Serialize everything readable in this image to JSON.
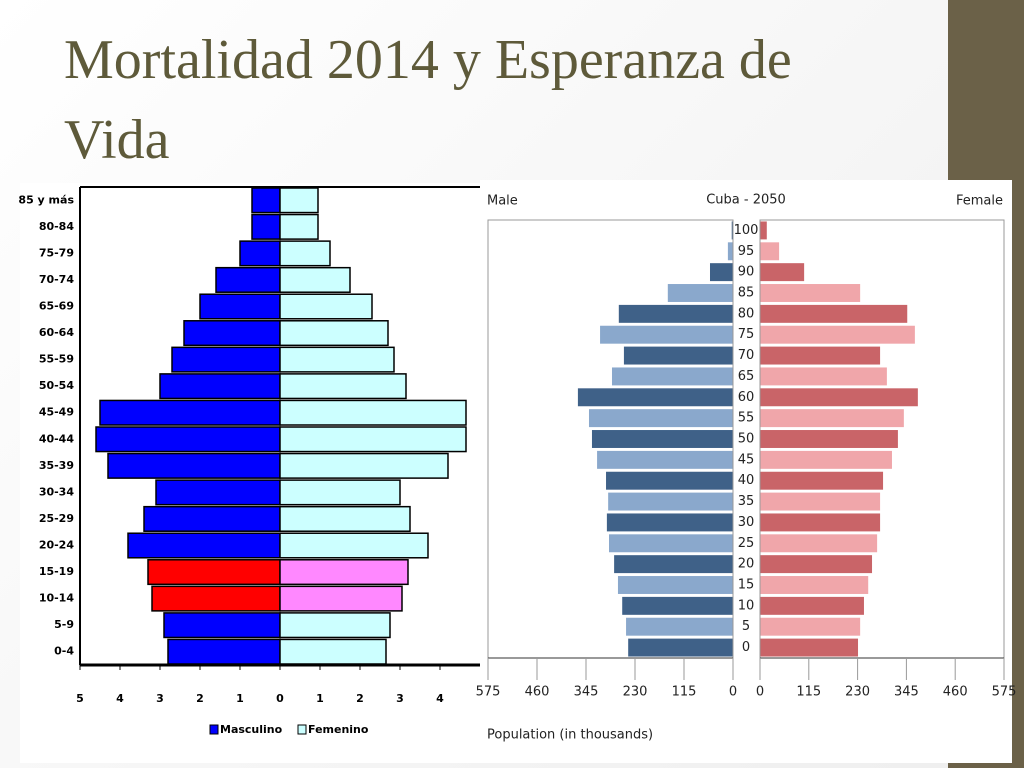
{
  "title": "Mortalidad 2014 y Esperanza de Vida",
  "chart_data": [
    {
      "type": "pyramid",
      "categories": [
        "0-4",
        "5-9",
        "10-14",
        "15-19",
        "20-24",
        "25-29",
        "30-34",
        "35-39",
        "40-44",
        "45-49",
        "50-54",
        "55-59",
        "60-64",
        "65-69",
        "70-74",
        "75-79",
        "80-84",
        "85 y más"
      ],
      "series": [
        {
          "name": "Masculino",
          "color": "#0000ff",
          "colors": [
            "#0000ff",
            "#0000ff",
            "#ff0000",
            "#ff0000",
            "#0000ff",
            "#0000ff",
            "#0000ff",
            "#0000ff",
            "#0000ff",
            "#0000ff",
            "#0000ff",
            "#0000ff",
            "#0000ff",
            "#0000ff",
            "#0000ff",
            "#0000ff",
            "#0000ff",
            "#0000ff"
          ],
          "values": [
            2.8,
            2.9,
            3.2,
            3.3,
            3.8,
            3.4,
            3.1,
            4.3,
            4.6,
            4.5,
            3.0,
            2.7,
            2.4,
            2.0,
            1.6,
            1.0,
            0.7,
            0.7
          ]
        },
        {
          "name": "Femenino",
          "color": "#ccffff",
          "colors": [
            "#ccffff",
            "#ccffff",
            "#ff88ff",
            "#ff88ff",
            "#ccffff",
            "#ccffff",
            "#ccffff",
            "#ccffff",
            "#ccffff",
            "#ccffff",
            "#ccffff",
            "#ccffff",
            "#ccffff",
            "#ccffff",
            "#ccffff",
            "#ccffff",
            "#ccffff",
            "#ccffff"
          ],
          "values": [
            2.65,
            2.75,
            3.05,
            3.2,
            3.7,
            3.25,
            3.0,
            4.2,
            4.65,
            4.65,
            3.15,
            2.85,
            2.7,
            2.3,
            1.75,
            1.25,
            0.95,
            0.95
          ]
        }
      ],
      "xlim": [
        -5,
        5
      ],
      "xticks": [
        {
          "value": -5,
          "label": "5"
        },
        {
          "value": -4,
          "label": "4"
        },
        {
          "value": -3,
          "label": "3"
        },
        {
          "value": -2,
          "label": "2"
        },
        {
          "value": -1,
          "label": "1"
        },
        0,
        1,
        2,
        3,
        4
      ],
      "legend": "bottom"
    },
    {
      "type": "pyramid",
      "title": "Cuba - 2050",
      "xlabel": "Population (in thousands)",
      "categories": [
        "0",
        "5",
        "10",
        "15",
        "20",
        "25",
        "30",
        "35",
        "40",
        "45",
        "50",
        "55",
        "60",
        "65",
        "70",
        "75",
        "80",
        "85",
        "90",
        "95",
        "100"
      ],
      "series": [
        {
          "name": "Male",
          "colors": [
            "#3f6188",
            "#8aa8cc"
          ],
          "values": [
            246,
            251,
            260,
            270,
            279,
            291,
            296,
            293,
            298,
            319,
            331,
            338,
            364,
            284,
            256,
            312,
            268,
            153,
            54,
            12,
            3
          ]
        },
        {
          "name": "Female",
          "colors": [
            "#c96468",
            "#f0a6aa"
          ],
          "values": [
            231,
            236,
            245,
            255,
            264,
            276,
            283,
            283,
            290,
            311,
            325,
            339,
            372,
            299,
            283,
            365,
            347,
            236,
            104,
            45,
            16
          ]
        }
      ],
      "xlim": [
        0,
        575
      ],
      "xticks": [
        0,
        115,
        230,
        345,
        460,
        575
      ]
    }
  ]
}
